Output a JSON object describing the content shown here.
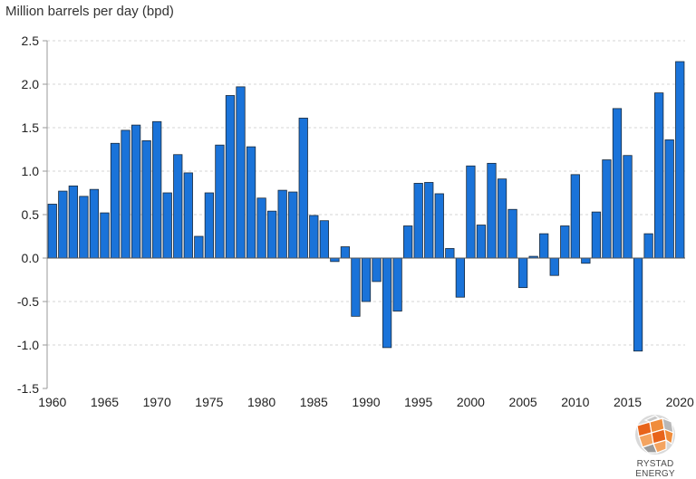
{
  "chart_data": {
    "type": "bar",
    "title": "",
    "ylabel": "Million barrels per day (bpd)",
    "xlabel": "",
    "ylim": [
      -1.5,
      2.5
    ],
    "yticks": [
      2.5,
      2.0,
      1.5,
      1.0,
      0.5,
      0.0,
      -0.5,
      -1.0,
      -1.5
    ],
    "ytick_labels": [
      "2.5",
      "2.0",
      "1.5",
      "1.0",
      "0.5",
      "0.0",
      "-0.5",
      "-1.0",
      "-1.5"
    ],
    "xtick_labels": [
      "1960",
      "1965",
      "1970",
      "1975",
      "1980",
      "1985",
      "1990",
      "1995",
      "2000",
      "2005",
      "2010",
      "2015",
      "2020"
    ],
    "grid": true,
    "bar_color": "#1a73d9",
    "bar_edge_color": "#1b2a3a",
    "categories": [
      "1960",
      "1961",
      "1962",
      "1963",
      "1964",
      "1965",
      "1966",
      "1967",
      "1968",
      "1969",
      "1970",
      "1971",
      "1972",
      "1973",
      "1974",
      "1975",
      "1976",
      "1977",
      "1978",
      "1979",
      "1980",
      "1981",
      "1982",
      "1983",
      "1984",
      "1985",
      "1986",
      "1987",
      "1988",
      "1989",
      "1990",
      "1991",
      "1992",
      "1993",
      "1994",
      "1995",
      "1996",
      "1997",
      "1998",
      "1999",
      "2000",
      "2001",
      "2002",
      "2003",
      "2004",
      "2005",
      "2006",
      "2007",
      "2008",
      "2009",
      "2010",
      "2011",
      "2012",
      "2013",
      "2014",
      "2015",
      "2016",
      "2017",
      "2018",
      "2019",
      "2020"
    ],
    "values": [
      0.62,
      0.77,
      0.83,
      0.71,
      0.79,
      0.52,
      1.32,
      1.47,
      1.53,
      1.35,
      1.57,
      0.75,
      1.19,
      0.98,
      0.25,
      0.75,
      1.3,
      1.87,
      1.97,
      1.28,
      0.69,
      0.54,
      0.78,
      0.76,
      1.61,
      0.49,
      0.43,
      -0.04,
      0.13,
      -0.67,
      -0.5,
      -0.27,
      -1.03,
      -0.61,
      0.37,
      0.86,
      0.87,
      0.74,
      0.11,
      -0.45,
      1.06,
      0.38,
      1.09,
      0.91,
      0.56,
      -0.34,
      0.02,
      0.28,
      -0.2,
      0.37,
      0.96,
      -0.06,
      0.53,
      1.13,
      1.72,
      1.18,
      -1.07,
      0.28,
      1.9,
      1.36,
      2.26
    ]
  },
  "branding": {
    "logo_text": "RYSTAD ENERGY",
    "logo_colors": [
      "#e8641b",
      "#f4a460",
      "#8a8a8a",
      "#c0c0c0"
    ]
  }
}
